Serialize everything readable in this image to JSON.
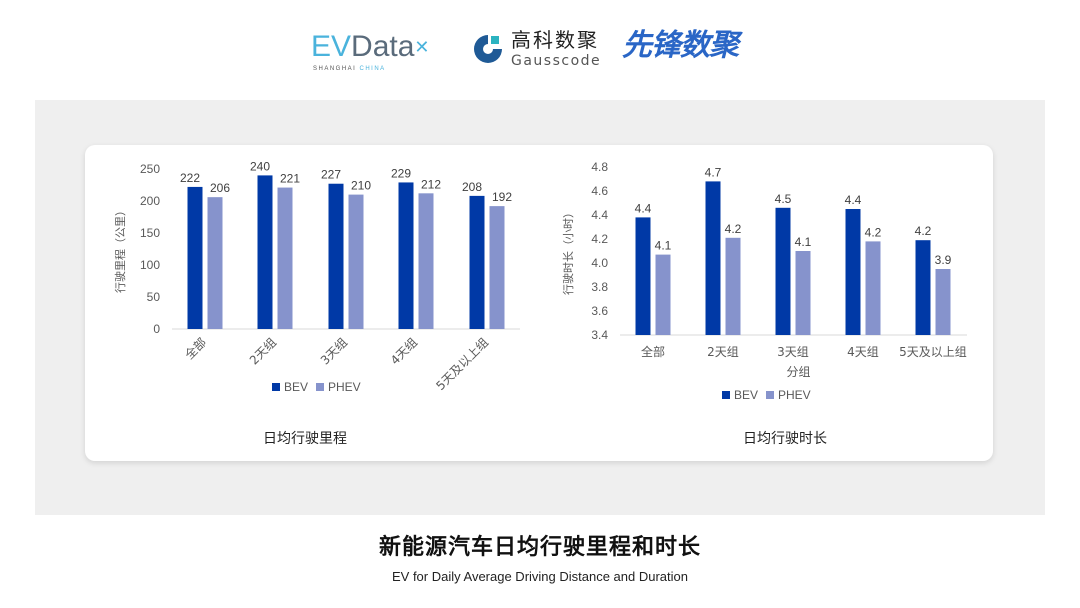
{
  "logos": {
    "evdata": {
      "ev": "EV",
      "rest": "Data",
      "sub_a": "SHANGHAI ",
      "sub_b": "CHINA"
    },
    "gausscode": {
      "cn": "高科数聚",
      "en": "Gausscode"
    },
    "xianfeng": "先锋数聚"
  },
  "colors": {
    "bev": "#0039a6",
    "phev": "#8693cc",
    "panel": "#efefef",
    "axis_text": "#595959"
  },
  "chart_data": [
    {
      "type": "bar",
      "title": "日均行驶里程",
      "xlabel": "",
      "ylabel": "行驶里程（公里）",
      "ylim": [
        0,
        250
      ],
      "yticks": [
        "0",
        "50",
        "100",
        "150",
        "200",
        "250"
      ],
      "categories": [
        "全部",
        "2天组",
        "3天组",
        "4天组",
        "5天及以上组"
      ],
      "legend_position": "bottom",
      "grid": false,
      "series": [
        {
          "name": "BEV",
          "values": [
            222,
            240,
            227,
            229,
            208
          ],
          "labels": [
            "222",
            "240",
            "227",
            "229",
            "208"
          ]
        },
        {
          "name": "PHEV",
          "values": [
            206,
            221,
            210,
            212,
            192
          ],
          "labels": [
            "206",
            "221",
            "210",
            "212",
            "192"
          ]
        }
      ]
    },
    {
      "type": "bar",
      "title": "日均行驶时长",
      "xlabel": "分组",
      "ylabel": "行驶时长（小时）",
      "ylim": [
        3.4,
        4.8
      ],
      "yticks": [
        "3.4",
        "3.6",
        "3.8",
        "4.0",
        "4.2",
        "4.4",
        "4.6",
        "4.8"
      ],
      "categories": [
        "全部",
        "2天组",
        "3天组",
        "4天组",
        "5天及以上组"
      ],
      "legend_position": "bottom",
      "grid": false,
      "series": [
        {
          "name": "BEV",
          "values": [
            4.38,
            4.68,
            4.46,
            4.45,
            4.19
          ],
          "labels": [
            "4.4",
            "4.7",
            "4.5",
            "4.4",
            "4.2"
          ]
        },
        {
          "name": "PHEV",
          "values": [
            4.07,
            4.21,
            4.1,
            4.18,
            3.95
          ],
          "labels": [
            "4.1",
            "4.2",
            "4.1",
            "4.2",
            "3.9"
          ]
        }
      ]
    }
  ],
  "caption": {
    "cn": "新能源汽车日均行驶里程和时长",
    "en": "EV for Daily Average Driving Distance and Duration"
  }
}
